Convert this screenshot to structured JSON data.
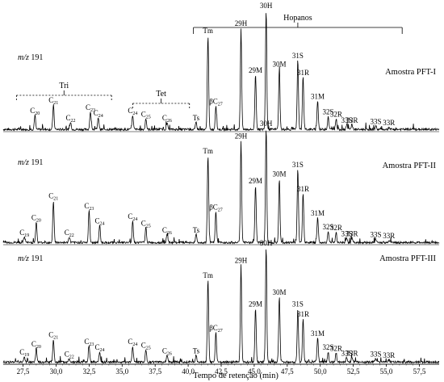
{
  "chart_data": {
    "type": "line",
    "title": "",
    "xlabel": "Tempo de retenção (min)",
    "ylabel": "",
    "xlim": [
      26.0,
      59.0
    ],
    "x_ticks": [
      "27,5",
      "30,0",
      "32,5",
      "35,0",
      "37,5",
      "40,0",
      "42,5",
      "45,0",
      "47,5",
      "50,0",
      "52,5",
      "55,0",
      "57,5"
    ],
    "x_tick_values": [
      27.5,
      30.0,
      32.5,
      35.0,
      37.5,
      40.0,
      42.5,
      45.0,
      47.5,
      50.0,
      52.5,
      55.0,
      57.5
    ],
    "grid": false,
    "legend": "none",
    "groups": [
      {
        "label": "Hopanos",
        "x_start": 40.4,
        "x_end": 56.2
      },
      {
        "label": "Tri",
        "x_start": 27.0,
        "x_end": 34.2
      },
      {
        "label": "Tet",
        "x_start": 35.8,
        "x_end": 40.1
      }
    ],
    "series": [
      {
        "name": "Amostra PFT-I",
        "mz_prefix": "m/z",
        "mz_value": "191",
        "peaks": [
          {
            "t": 28.4,
            "h": 0.12,
            "label": "C",
            "sub": "20"
          },
          {
            "t": 29.8,
            "h": 0.21,
            "label": "C",
            "sub": "21"
          },
          {
            "t": 31.1,
            "h": 0.06,
            "label": "C",
            "sub": "22"
          },
          {
            "t": 32.6,
            "h": 0.15,
            "label": "C",
            "sub": "23"
          },
          {
            "t": 33.2,
            "h": 0.1,
            "label": "C",
            "sub": "24"
          },
          {
            "t": 35.8,
            "h": 0.12,
            "label": "C",
            "sub": "24"
          },
          {
            "t": 36.8,
            "h": 0.09,
            "label": "C",
            "sub": "25"
          },
          {
            "t": 38.4,
            "h": 0.06,
            "label": "C",
            "sub": "26"
          },
          {
            "t": 40.6,
            "h": 0.06,
            "label": "Ts",
            "sub": ""
          },
          {
            "t": 41.5,
            "h": 0.79,
            "label": "Tm",
            "sub": ""
          },
          {
            "t": 42.1,
            "h": 0.2,
            "label": "βC",
            "sub": "27"
          },
          {
            "t": 44.0,
            "h": 0.85,
            "label": "29H",
            "sub": ""
          },
          {
            "t": 45.1,
            "h": 0.46,
            "label": "29M",
            "sub": ""
          },
          {
            "t": 45.9,
            "h": 1.0,
            "label": "30H",
            "sub": ""
          },
          {
            "t": 46.9,
            "h": 0.51,
            "label": "30M",
            "sub": ""
          },
          {
            "t": 48.3,
            "h": 0.58,
            "label": "31S",
            "sub": ""
          },
          {
            "t": 48.7,
            "h": 0.44,
            "label": "31R",
            "sub": ""
          },
          {
            "t": 49.8,
            "h": 0.24,
            "label": "31M",
            "sub": ""
          },
          {
            "t": 50.6,
            "h": 0.11,
            "label": "32S",
            "sub": ""
          },
          {
            "t": 51.2,
            "h": 0.09,
            "label": "32R",
            "sub": ""
          },
          {
            "t": 52.0,
            "h": 0.04,
            "label": "33S",
            "sub": ""
          },
          {
            "t": 52.4,
            "h": 0.04,
            "label": "33R",
            "sub": ""
          },
          {
            "t": 54.2,
            "h": 0.03,
            "label": "33S",
            "sub": ""
          },
          {
            "t": 55.2,
            "h": 0.02,
            "label": "33R",
            "sub": ""
          }
        ]
      },
      {
        "name": "Amostra PFT-II",
        "mz_prefix": "m/z",
        "mz_value": "191",
        "peaks": [
          {
            "t": 27.6,
            "h": 0.05,
            "label": "C",
            "sub": "19"
          },
          {
            "t": 28.5,
            "h": 0.18,
            "label": "C",
            "sub": "20"
          },
          {
            "t": 29.8,
            "h": 0.37,
            "label": "C",
            "sub": "21"
          },
          {
            "t": 31.0,
            "h": 0.05,
            "label": "C",
            "sub": "22"
          },
          {
            "t": 32.5,
            "h": 0.28,
            "label": "C",
            "sub": "23"
          },
          {
            "t": 33.3,
            "h": 0.15,
            "label": "C",
            "sub": "24"
          },
          {
            "t": 35.8,
            "h": 0.19,
            "label": "C",
            "sub": "24"
          },
          {
            "t": 36.8,
            "h": 0.13,
            "label": "C",
            "sub": "25"
          },
          {
            "t": 38.4,
            "h": 0.07,
            "label": "C",
            "sub": "26"
          },
          {
            "t": 40.6,
            "h": 0.07,
            "label": "Ts",
            "sub": ""
          },
          {
            "t": 41.5,
            "h": 0.76,
            "label": "Tm",
            "sub": ""
          },
          {
            "t": 42.1,
            "h": 0.27,
            "label": "βC",
            "sub": "27"
          },
          {
            "t": 44.0,
            "h": 0.89,
            "label": "29H",
            "sub": ""
          },
          {
            "t": 45.1,
            "h": 0.5,
            "label": "29M",
            "sub": ""
          },
          {
            "t": 45.9,
            "h": 1.0,
            "label": "30H",
            "sub": ""
          },
          {
            "t": 46.9,
            "h": 0.56,
            "label": "30M",
            "sub": ""
          },
          {
            "t": 48.3,
            "h": 0.64,
            "label": "31S",
            "sub": ""
          },
          {
            "t": 48.7,
            "h": 0.43,
            "label": "31R",
            "sub": ""
          },
          {
            "t": 49.8,
            "h": 0.22,
            "label": "31M",
            "sub": ""
          },
          {
            "t": 50.6,
            "h": 0.1,
            "label": "32S",
            "sub": ""
          },
          {
            "t": 51.2,
            "h": 0.09,
            "label": "32R",
            "sub": ""
          },
          {
            "t": 52.0,
            "h": 0.04,
            "label": "33S",
            "sub": ""
          },
          {
            "t": 52.4,
            "h": 0.04,
            "label": "33R",
            "sub": ""
          },
          {
            "t": 54.2,
            "h": 0.03,
            "label": "33S",
            "sub": ""
          },
          {
            "t": 55.2,
            "h": 0.02,
            "label": "33R",
            "sub": ""
          }
        ]
      },
      {
        "name": "Amostra PFT-III",
        "mz_prefix": "m/z",
        "mz_value": "191",
        "peaks": [
          {
            "t": 27.6,
            "h": 0.05,
            "label": "C",
            "sub": "19"
          },
          {
            "t": 28.5,
            "h": 0.12,
            "label": "C",
            "sub": "20"
          },
          {
            "t": 29.8,
            "h": 0.2,
            "label": "C",
            "sub": "21"
          },
          {
            "t": 31.0,
            "h": 0.03,
            "label": "C",
            "sub": "22"
          },
          {
            "t": 32.5,
            "h": 0.14,
            "label": "C",
            "sub": "23"
          },
          {
            "t": 33.3,
            "h": 0.09,
            "label": "C",
            "sub": "24"
          },
          {
            "t": 35.8,
            "h": 0.14,
            "label": "C",
            "sub": "24"
          },
          {
            "t": 36.8,
            "h": 0.11,
            "label": "C",
            "sub": "25"
          },
          {
            "t": 38.4,
            "h": 0.06,
            "label": "C",
            "sub": "26"
          },
          {
            "t": 40.6,
            "h": 0.06,
            "label": "Ts",
            "sub": ""
          },
          {
            "t": 41.5,
            "h": 0.72,
            "label": "Tm",
            "sub": ""
          },
          {
            "t": 42.1,
            "h": 0.26,
            "label": "βC",
            "sub": "27"
          },
          {
            "t": 44.0,
            "h": 0.85,
            "label": "29H",
            "sub": ""
          },
          {
            "t": 45.1,
            "h": 0.47,
            "label": "29M",
            "sub": ""
          },
          {
            "t": 45.9,
            "h": 1.0,
            "label": "30H",
            "sub": ""
          },
          {
            "t": 46.9,
            "h": 0.57,
            "label": "30M",
            "sub": ""
          },
          {
            "t": 48.3,
            "h": 0.47,
            "label": "31S",
            "sub": ""
          },
          {
            "t": 48.7,
            "h": 0.38,
            "label": "31R",
            "sub": ""
          },
          {
            "t": 49.8,
            "h": 0.21,
            "label": "31M",
            "sub": ""
          },
          {
            "t": 50.6,
            "h": 0.09,
            "label": "32S",
            "sub": ""
          },
          {
            "t": 51.2,
            "h": 0.08,
            "label": "32R",
            "sub": ""
          },
          {
            "t": 52.0,
            "h": 0.04,
            "label": "33S",
            "sub": ""
          },
          {
            "t": 52.4,
            "h": 0.04,
            "label": "33R",
            "sub": ""
          },
          {
            "t": 54.2,
            "h": 0.03,
            "label": "33S",
            "sub": ""
          },
          {
            "t": 55.2,
            "h": 0.02,
            "label": "33R",
            "sub": ""
          }
        ]
      }
    ]
  }
}
